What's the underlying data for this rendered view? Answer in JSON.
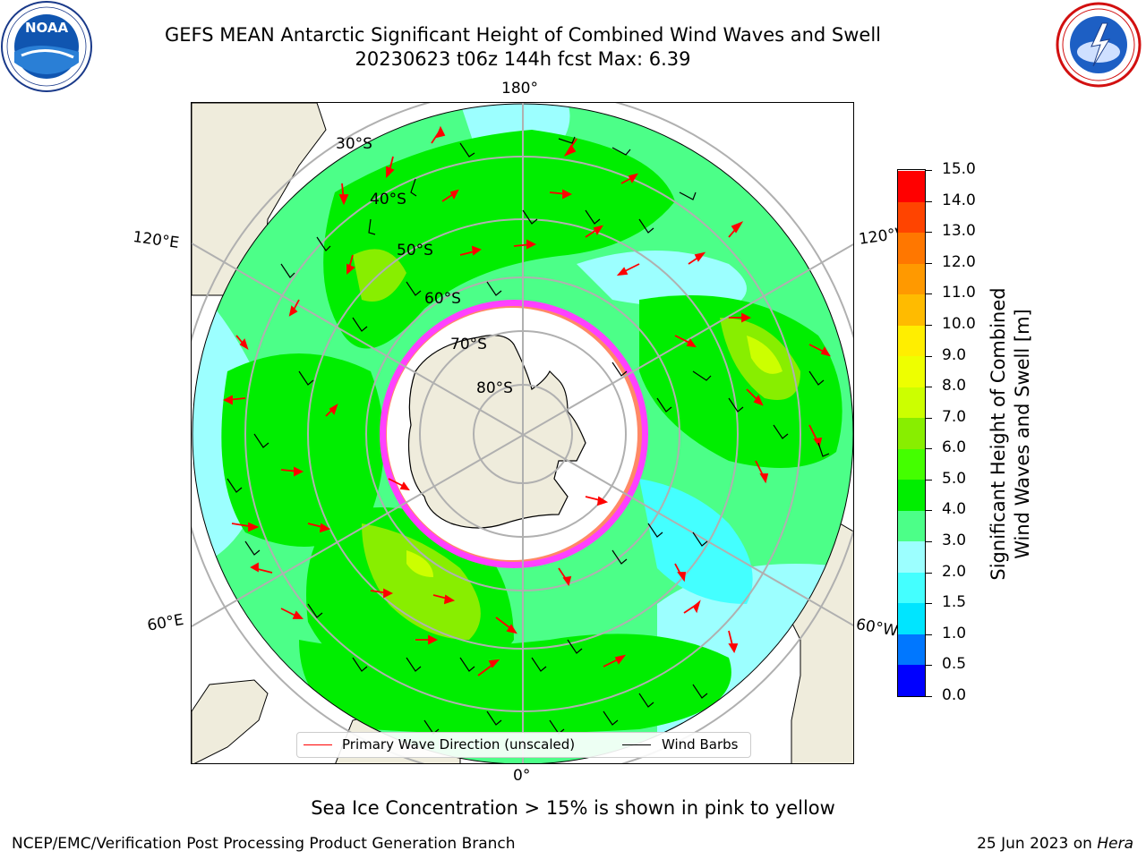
{
  "header": {
    "title_line1": "GEFS MEAN Antarctic Significant Height of Combined Wind Waves and Swell",
    "title_line2": "20230623 t06z 144h fcst   Max: 6.39"
  },
  "logos": {
    "left": {
      "name": "noaa-logo",
      "text": "NOAA",
      "ring_text": "NATIONAL OCEANIC AND ATMOSPHERIC ADMINISTRATION · U.S. DEPARTMENT OF COMMERCE"
    },
    "right": {
      "name": "nws-logo",
      "ring_text": "NATIONAL WEATHER SERVICE"
    }
  },
  "map": {
    "projection": "south-polar-stereographic",
    "longitude_labels": {
      "top": "180°",
      "bottom": "0°",
      "upper_left": "120°E",
      "lower_left": "60°E",
      "upper_right": "120°W",
      "lower_right": "60°W"
    },
    "latitude_labels": [
      "30°S",
      "40°S",
      "50°S",
      "60°S",
      "70°S",
      "80°S"
    ],
    "colors": {
      "land": "#efecdc",
      "ice_white": "#ffffff",
      "ice_edge": "#ff40ff",
      "arrows": "#ff0000",
      "barbs": "#000000",
      "grid": "#b0b0b0"
    }
  },
  "legend": {
    "wave_direction": "Primary Wave Direction (unscaled)",
    "wind_barbs": "Wind Barbs"
  },
  "colorbar": {
    "label_line1": "Significant Height of Combined",
    "label_line2": "Wind Waves and Swell [m]",
    "ticks": [
      "0.0",
      "0.5",
      "1.0",
      "1.5",
      "2.0",
      "3.0",
      "4.0",
      "5.0",
      "6.0",
      "7.0",
      "8.0",
      "9.0",
      "10.0",
      "11.0",
      "12.0",
      "13.0",
      "14.0",
      "15.0"
    ],
    "colors": [
      "#0000ff",
      "#0077ff",
      "#00e5ff",
      "#44ffff",
      "#9cffff",
      "#4cff88",
      "#00ee00",
      "#44ff00",
      "#88ee00",
      "#ccff00",
      "#eeff00",
      "#ffee00",
      "#ffbb00",
      "#ff9900",
      "#ff7700",
      "#ff4400",
      "#ff0000"
    ]
  },
  "notes": {
    "sea_ice": "Sea Ice Concentration > 15% is shown in pink to yellow"
  },
  "footer": {
    "left": "NCEP/EMC/Verification Post Processing Product Generation Branch",
    "right_date": "25 Jun 2023 on ",
    "right_host": "Hera"
  }
}
